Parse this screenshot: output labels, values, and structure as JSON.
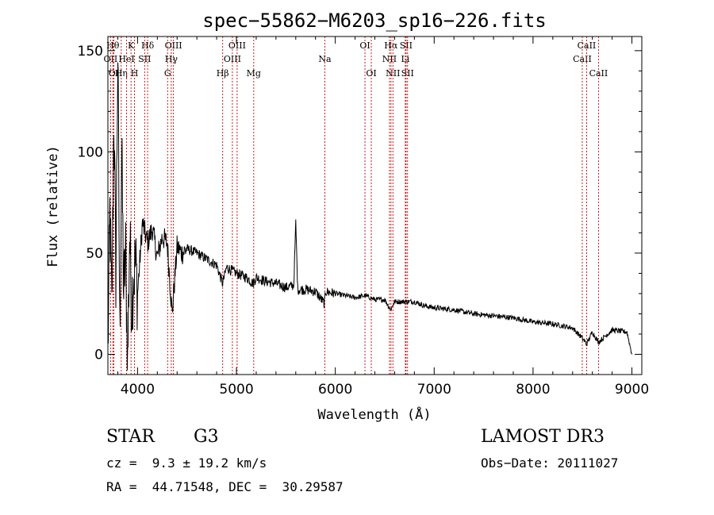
{
  "chart_data": {
    "type": "line",
    "title": "spec−55862−M6203_sp16−226.fits",
    "xlabel": "Wavelength (Å)",
    "ylabel": "Flux (relative)",
    "xlim": [
      3700,
      9100
    ],
    "ylim": [
      -10,
      157
    ],
    "xticks": [
      4000,
      5000,
      6000,
      7000,
      8000,
      9000
    ],
    "yticks": [
      0,
      50,
      100,
      150
    ],
    "grid": false,
    "line_color": "#000000",
    "marker_color": "#cc0000",
    "series": [
      {
        "name": "flux",
        "x": [
          3700,
          3720,
          3740,
          3760,
          3780,
          3800,
          3820,
          3840,
          3860,
          3880,
          3900,
          3920,
          3940,
          3960,
          3980,
          4000,
          4050,
          4100,
          4150,
          4200,
          4250,
          4300,
          4350,
          4400,
          4450,
          4500,
          4600,
          4700,
          4800,
          4860,
          4900,
          5000,
          5100,
          5170,
          5200,
          5300,
          5400,
          5500,
          5580,
          5600,
          5620,
          5700,
          5800,
          5890,
          5900,
          6000,
          6100,
          6200,
          6300,
          6400,
          6500,
          6560,
          6600,
          6700,
          6800,
          6900,
          7000,
          7200,
          7400,
          7600,
          7800,
          8000,
          8200,
          8400,
          8498,
          8542,
          8600,
          8662,
          8800,
          8950,
          9000
        ],
        "y": [
          0,
          70,
          20,
          120,
          40,
          150,
          10,
          100,
          30,
          50,
          -5,
          60,
          25,
          40,
          45,
          30,
          65,
          55,
          62,
          48,
          58,
          55,
          20,
          53,
          50,
          52,
          50,
          47,
          44,
          35,
          43,
          40,
          38,
          35,
          38,
          36,
          35,
          33,
          34,
          65,
          32,
          32,
          31,
          25,
          31,
          30,
          29,
          28,
          29,
          27,
          27,
          22,
          26,
          26,
          26,
          24,
          23,
          22,
          20,
          19,
          18,
          16,
          15,
          13,
          8,
          5,
          11,
          6,
          12,
          11,
          0
        ]
      }
    ],
    "line_markers": [
      {
        "label": "OII",
        "wavelength": 3727,
        "row": 1
      },
      {
        "label": "Hθ",
        "wavelength": 3750,
        "row": 0
      },
      {
        "label": "OI",
        "wavelength": 3760,
        "row": 2
      },
      {
        "label": "Hη",
        "wavelength": 3835,
        "row": 2
      },
      {
        "label": "HeI",
        "wavelength": 3889,
        "row": 1
      },
      {
        "label": "K",
        "wavelength": 3934,
        "row": 0
      },
      {
        "label": "H",
        "wavelength": 3969,
        "row": 2
      },
      {
        "label": "SII",
        "wavelength": 4072,
        "row": 1
      },
      {
        "label": "Hδ",
        "wavelength": 4102,
        "row": 0
      },
      {
        "label": "G",
        "wavelength": 4304,
        "row": 2
      },
      {
        "label": "Hγ",
        "wavelength": 4341,
        "row": 1
      },
      {
        "label": "OIII",
        "wavelength": 4363,
        "row": 0
      },
      {
        "label": "Hβ",
        "wavelength": 4861,
        "row": 2
      },
      {
        "label": "OIII",
        "wavelength": 4959,
        "row": 1
      },
      {
        "label": "OIII",
        "wavelength": 5007,
        "row": 0
      },
      {
        "label": "Mg",
        "wavelength": 5175,
        "row": 2
      },
      {
        "label": "Na",
        "wavelength": 5894,
        "row": 1
      },
      {
        "label": "OI",
        "wavelength": 6300,
        "row": 0
      },
      {
        "label": "OI",
        "wavelength": 6364,
        "row": 2
      },
      {
        "label": "NII",
        "wavelength": 6548,
        "row": 1
      },
      {
        "label": "Hα",
        "wavelength": 6563,
        "row": 0
      },
      {
        "label": "NII",
        "wavelength": 6583,
        "row": 2
      },
      {
        "label": "Li",
        "wavelength": 6708,
        "row": 1
      },
      {
        "label": "SII",
        "wavelength": 6716,
        "row": 0
      },
      {
        "label": "SII",
        "wavelength": 6731,
        "row": 2
      },
      {
        "label": "CaII",
        "wavelength": 8498,
        "row": 1
      },
      {
        "label": "CaII",
        "wavelength": 8542,
        "row": 0
      },
      {
        "label": "CaII",
        "wavelength": 8662,
        "row": 2
      }
    ]
  },
  "info": {
    "object_class": "STAR",
    "subclass": "G3",
    "redshift_text": "cz =  9.3 ± 19.2 km/s",
    "coords_text": "RA =  44.71548, DEC =  30.29587",
    "survey": "LAMOST DR3",
    "obs_date": "Obs−Date: 20111027"
  }
}
